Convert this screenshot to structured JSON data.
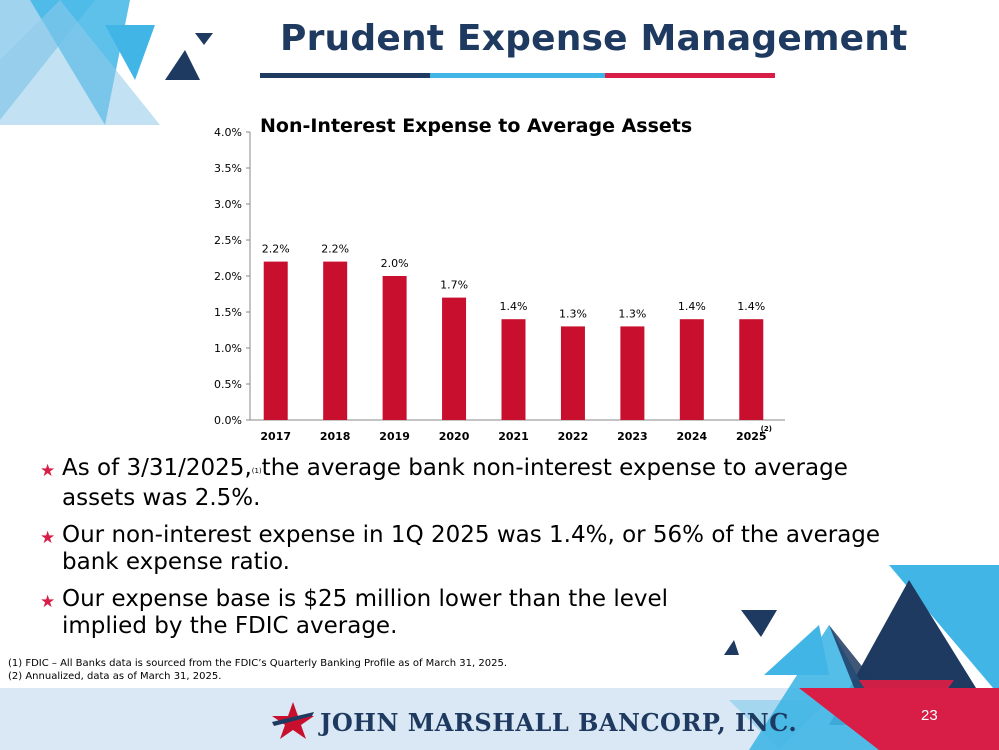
{
  "slide_title": "Prudent Expense Management",
  "chart_title": "Non-Interest Expense to Average Assets",
  "chart_data": {
    "type": "bar",
    "title": "Non-Interest Expense to Average Assets",
    "categories": [
      "2017",
      "2018",
      "2019",
      "2020",
      "2021",
      "2022",
      "2023",
      "2024",
      "2025"
    ],
    "category_notes": {
      "2025": "(2)"
    },
    "values": [
      2.2,
      2.2,
      2.0,
      1.7,
      1.4,
      1.3,
      1.3,
      1.4,
      1.4
    ],
    "value_labels": [
      "2.2%",
      "2.2%",
      "2.0%",
      "1.7%",
      "1.4%",
      "1.3%",
      "1.3%",
      "1.4%",
      "1.4%"
    ],
    "y_ticks": [
      "0.0%",
      "0.5%",
      "1.0%",
      "1.5%",
      "2.0%",
      "2.5%",
      "3.0%",
      "3.5%",
      "4.0%"
    ],
    "ylim": [
      0,
      4.0
    ],
    "bar_color": "#c8102e",
    "grid": false
  },
  "bullets": [
    {
      "pre": "As of 3/31/2025,",
      "sup": "(1)",
      "post": "the average bank non-interest expense to average assets was 2.5%."
    },
    {
      "pre": "Our non-interest expense in 1Q 2025 was 1.4%, or 56% of the average bank expense ratio.",
      "sup": "",
      "post": ""
    },
    {
      "pre": "Our expense base is $25 million lower than the level implied by the FDIC average.",
      "sup": "",
      "post": ""
    }
  ],
  "footnotes": [
    "(1)  FDIC – All Banks data is sourced from the FDIC’s Quarterly Banking Profile as of March 31, 2025.",
    "(2)  Annualized, data as of March 31, 2025."
  ],
  "footer": {
    "logo_text": "JOHN MARSHALL BANCORP, INC.",
    "page_number": "23"
  },
  "colors": {
    "navy": "#1f3a60",
    "sky": "#41b6e6",
    "red": "#d81e46",
    "light_blue": "#d9e8f4"
  }
}
